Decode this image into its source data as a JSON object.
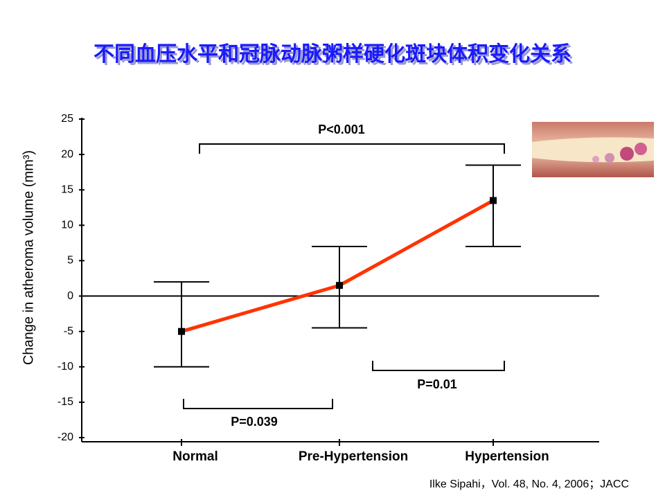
{
  "chart_data": {
    "type": "line",
    "title": "不同血压水平和冠脉动脉粥样硬化斑块体积变化关系",
    "y_label": "Change in atheroma volume (mm³)",
    "categories": [
      "Normal",
      "Pre-Hypertension",
      "Hypertension"
    ],
    "series": [
      {
        "color": "#ff3300",
        "values": [
          -5,
          1.5,
          13.5
        ],
        "lower": [
          -10,
          -4.5,
          7
        ],
        "upper": [
          2,
          7,
          18.5
        ]
      }
    ],
    "ylim": [
      -20,
      25
    ],
    "yticks": [
      -20,
      -15,
      -10,
      -5,
      0,
      5,
      10,
      15,
      20,
      25
    ],
    "annotations": [
      "P<0.001",
      "P=0.039",
      "P=0.01"
    ],
    "citation": "Ilke Sipahi，Vol. 48, No. 4, 2006；JACC"
  }
}
